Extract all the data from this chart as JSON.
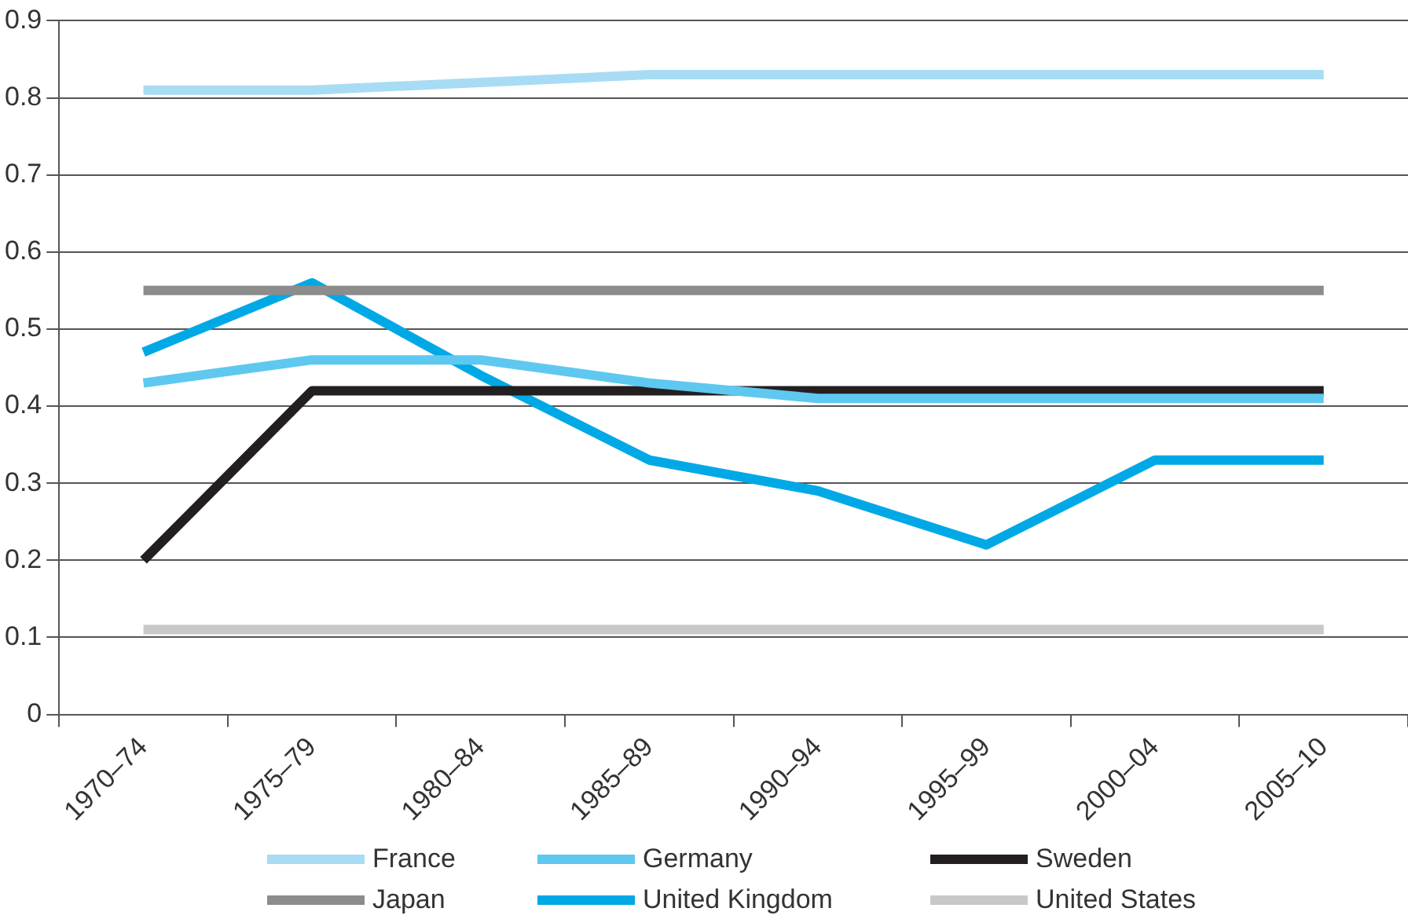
{
  "chart_data": {
    "type": "line",
    "categories": [
      "1970–74",
      "1975–79",
      "1980–84",
      "1985–89",
      "1990–94",
      "1995–99",
      "2000–04",
      "2005–10"
    ],
    "ylim": [
      0,
      0.9
    ],
    "yticks": [
      0,
      0.1,
      0.2,
      0.3,
      0.4,
      0.5,
      0.6,
      0.7,
      0.8,
      0.9
    ],
    "grid": "y",
    "legend": "bottom",
    "marker": "none",
    "line_style": "solid",
    "series": [
      {
        "name": "France",
        "color": "#a8dcf4",
        "values": [
          0.81,
          0.81,
          0.82,
          0.83,
          0.83,
          0.83,
          0.83,
          0.83
        ]
      },
      {
        "name": "Germany",
        "color": "#5ec8f0",
        "values": [
          0.43,
          0.46,
          0.46,
          0.43,
          0.41,
          0.41,
          0.41,
          0.41
        ]
      },
      {
        "name": "Sweden",
        "color": "#231f20",
        "values": [
          0.2,
          0.42,
          0.42,
          0.42,
          0.42,
          0.42,
          0.42,
          0.42
        ]
      },
      {
        "name": "Japan",
        "color": "#8c8c8c",
        "values": [
          0.55,
          0.55,
          0.55,
          0.55,
          0.55,
          0.55,
          0.55,
          0.55
        ]
      },
      {
        "name": "United Kingdom",
        "color": "#00a9e6",
        "values": [
          0.47,
          0.56,
          0.44,
          0.33,
          0.29,
          0.22,
          0.33,
          0.33
        ]
      },
      {
        "name": "United States",
        "color": "#c8c8c8",
        "values": [
          0.11,
          0.11,
          0.11,
          0.11,
          0.11,
          0.11,
          0.11,
          0.11
        ]
      }
    ]
  }
}
